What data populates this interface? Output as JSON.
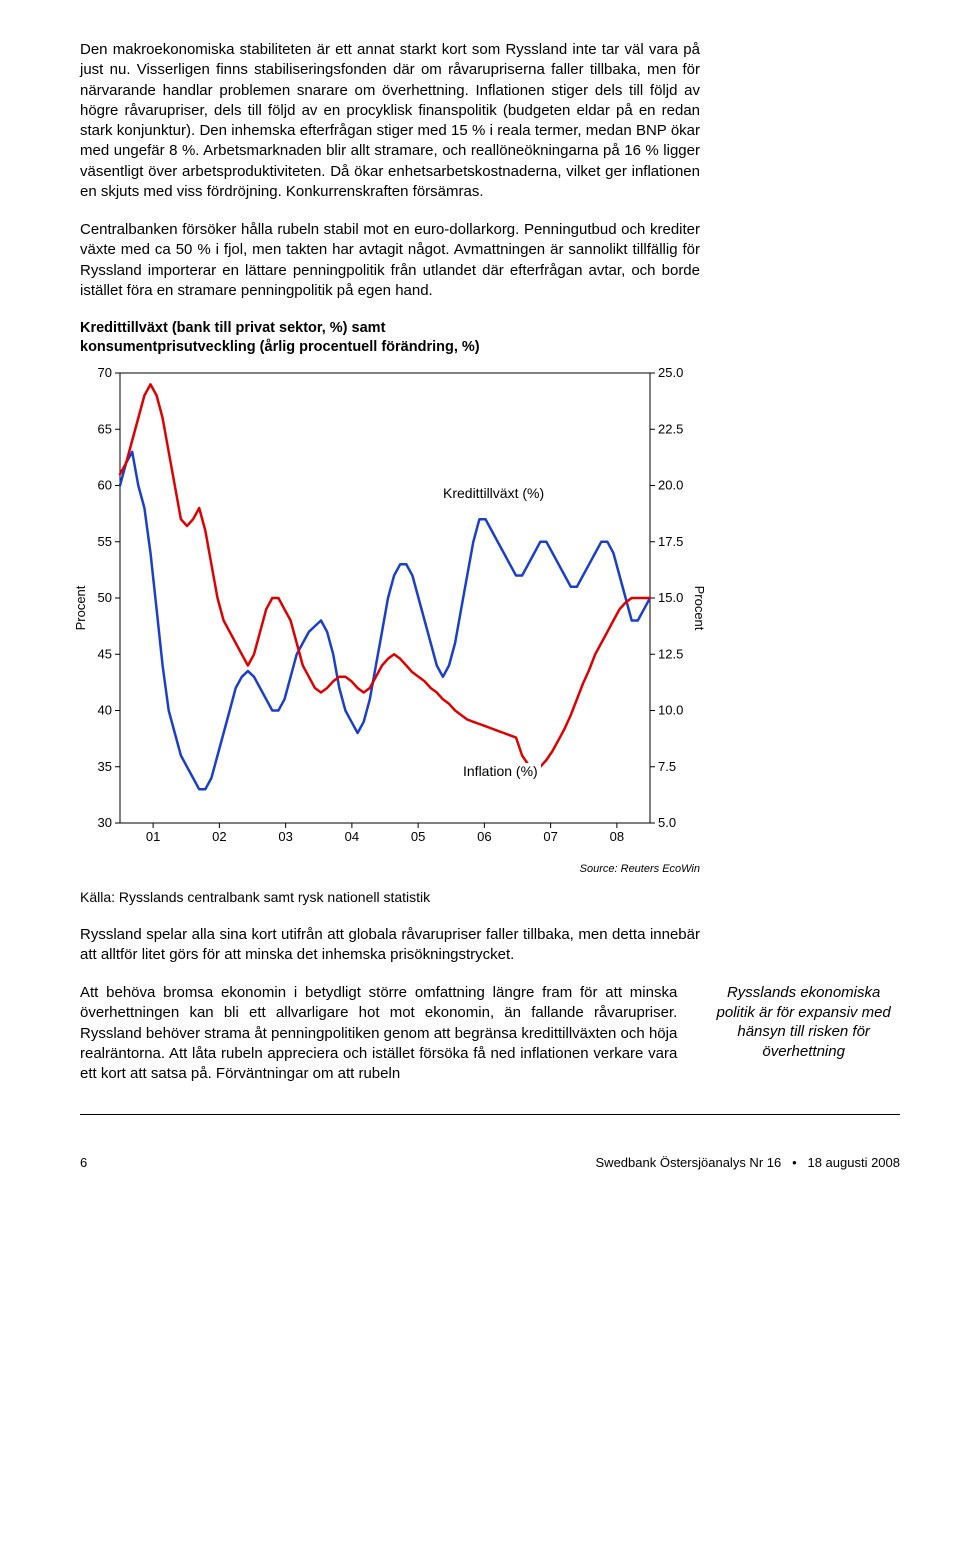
{
  "paragraphs": {
    "p1": "Den makroekonomiska stabiliteten är ett annat starkt kort som Ryssland inte tar väl vara på just nu. Visserligen finns stabiliseringsfonden där om råvarupriserna faller tillbaka, men för närvarande handlar problemen snarare om överhettning. Inflationen stiger dels till följd av högre råvarupriser, dels till följd av en procyklisk finanspolitik (budgeten eldar på en redan stark konjunktur). Den inhemska efterfrågan stiger med 15 % i reala termer, medan BNP ökar med ungefär 8 %. Arbetsmarknaden blir allt stramare, och reallöneökningarna på 16 % ligger väsentligt över arbetsproduktiviteten. Då ökar enhetsarbetskostnaderna, vilket ger inflationen en skjuts med viss fördröjning. Konkurrenskraften försämras.",
    "p2": "Centralbanken försöker hålla rubeln stabil mot en euro-dollarkorg. Penningutbud och krediter växte med ca 50 % i fjol, men takten har avtagit något. Avmattningen är sannolikt tillfällig för Ryssland importerar en lättare penningpolitik från utlandet där efterfrågan avtar, och borde istället föra en stramare penningpolitik på egen hand.",
    "p3": "Ryssland spelar alla sina kort utifrån att globala råvarupriser faller tillbaka, men detta innebär att alltför litet görs för att minska det inhemska prisökningstrycket.",
    "p4": "Att behöva bromsa ekonomin i betydligt större omfattning längre fram för att minska överhettningen kan bli ett allvarligare hot mot ekonomin, än fallande råvarupriser. Ryssland behöver strama åt penningpolitiken genom att begränsa kredittillväxten och höja realräntorna. Att låta rubeln appreciera och istället försöka få ned inflationen verkare vara ett kort att satsa på. Förväntningar om att rubeln"
  },
  "chart": {
    "title_line1": "Kredittillväxt (bank till privat sektor, %) samt",
    "title_line2": "konsumentprisutveckling (årlig procentuell förändring, %)",
    "left_axis_label": "Procent",
    "right_axis_label": "Procent",
    "left_ticks": [
      70,
      65,
      60,
      55,
      50,
      45,
      40,
      35,
      30
    ],
    "right_ticks": [
      "25.0",
      "22.5",
      "20.0",
      "17.5",
      "15.0",
      "12.5",
      "10.0",
      "7.5",
      "5.0"
    ],
    "x_ticks": [
      "01",
      "02",
      "03",
      "04",
      "05",
      "06",
      "07",
      "08"
    ],
    "series1_label": "Kredittillväxt (%)",
    "series2_label": "Inflation (%)",
    "series1_color": "#1a3fcc",
    "series2_color": "#e00000",
    "bg_color": "#ffffff",
    "left_ylim": [
      30,
      70
    ],
    "right_ylim": [
      5.0,
      25.0
    ],
    "line_width": 2.5,
    "credit_data": [
      60,
      62,
      63,
      60,
      58,
      54,
      49,
      44,
      40,
      38,
      36,
      35,
      34,
      33,
      33,
      34,
      36,
      38,
      40,
      42,
      43,
      43.5,
      43,
      42,
      41,
      40,
      40,
      41,
      43,
      45,
      46,
      47,
      47.5,
      48,
      47,
      45,
      42,
      40,
      39,
      38,
      39,
      41,
      44,
      47,
      50,
      52,
      53,
      53,
      52,
      50,
      48,
      46,
      44,
      43,
      44,
      46,
      49,
      52,
      55,
      57,
      57,
      56,
      55,
      54,
      53,
      52,
      52,
      53,
      54,
      55,
      55,
      54,
      53,
      52,
      51,
      51,
      52,
      53,
      54,
      55,
      55,
      54,
      52,
      50,
      48,
      48,
      49,
      50
    ],
    "inflation_data": [
      20.5,
      21,
      22,
      23,
      24,
      24.5,
      24,
      23,
      21.5,
      20,
      18.5,
      18.2,
      18.5,
      19,
      18,
      16.5,
      15,
      14,
      13.5,
      13,
      12.5,
      12,
      12.5,
      13.5,
      14.5,
      15,
      15,
      14.5,
      14,
      13,
      12,
      11.5,
      11,
      10.8,
      11,
      11.3,
      11.5,
      11.5,
      11.3,
      11,
      10.8,
      11,
      11.5,
      12,
      12.3,
      12.5,
      12.3,
      12,
      11.7,
      11.5,
      11.3,
      11,
      10.8,
      10.5,
      10.3,
      10,
      9.8,
      9.6,
      9.5,
      9.4,
      9.3,
      9.2,
      9.1,
      9,
      8.9,
      8.8,
      8,
      7.6,
      7.4,
      7.5,
      7.8,
      8.2,
      8.7,
      9.2,
      9.8,
      10.5,
      11.2,
      11.8,
      12.5,
      13,
      13.5,
      14,
      14.5,
      14.8,
      15,
      15,
      15,
      15
    ]
  },
  "source_line": "Source: Reuters EcoWin",
  "kalla": "Källa: Rysslands centralbank samt rysk nationell statistik",
  "sidenote": "Rysslands ekonomiska politik är för expansiv med hänsyn till risken för överhettning",
  "footer": {
    "page": "6",
    "pub": "Swedbank Östersjöanalys Nr 16",
    "date": "18 augusti 2008",
    "bullet": "•"
  }
}
